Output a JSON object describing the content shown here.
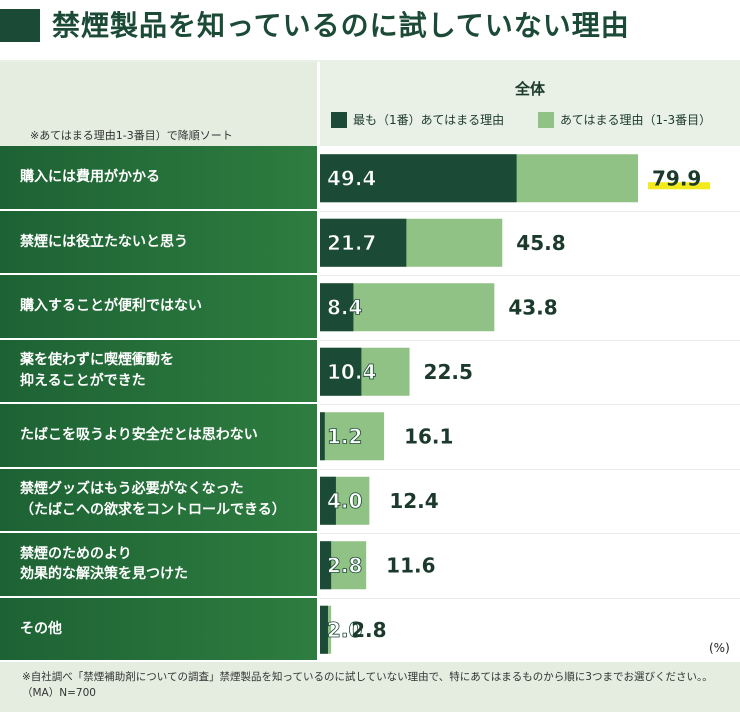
{
  "title": "禁煙製品を知っているのに試していない理由",
  "sort_note": "※あてはまる理由1-3番目）で降順ソート",
  "chart_data": {
    "type": "bar",
    "orientation": "horizontal",
    "stacked_overlay": true,
    "header": "全体",
    "categories": [
      "購入には費用がかかる",
      "禁煙には役立たないと思う",
      "購入することが便利ではない",
      "薬を使わずに喫煙衝動を\n抑えることができた",
      "たばこを吸うより安全だとは思わない",
      "禁煙グッズはもう必要がなくなった\n（たばこへの欲求をコントロールできる）",
      "禁煙のためのより\n効果的な解決策を見つけた",
      "その他"
    ],
    "series": [
      {
        "name": "最も（1番）あてはまる理由",
        "color": "#1b4a37",
        "values": [
          49.4,
          21.7,
          8.4,
          10.4,
          1.2,
          4.0,
          2.8,
          2.0
        ]
      },
      {
        "name": "あてはまる理由（1-3番目）",
        "color": "#8fc284",
        "values": [
          79.9,
          45.8,
          43.8,
          22.5,
          16.1,
          12.4,
          11.6,
          2.8
        ]
      }
    ],
    "highlight": {
      "category_index": 0,
      "color": "#f2ea1c"
    },
    "unit": "(%)",
    "xlim": [
      0,
      100
    ]
  },
  "footnote": "※自社調べ「禁煙補助剤についての調査」禁煙製品を知っているのに試していない理由で、特にあてはまるものから順に3つまでお選びください。。（MA）N=700"
}
